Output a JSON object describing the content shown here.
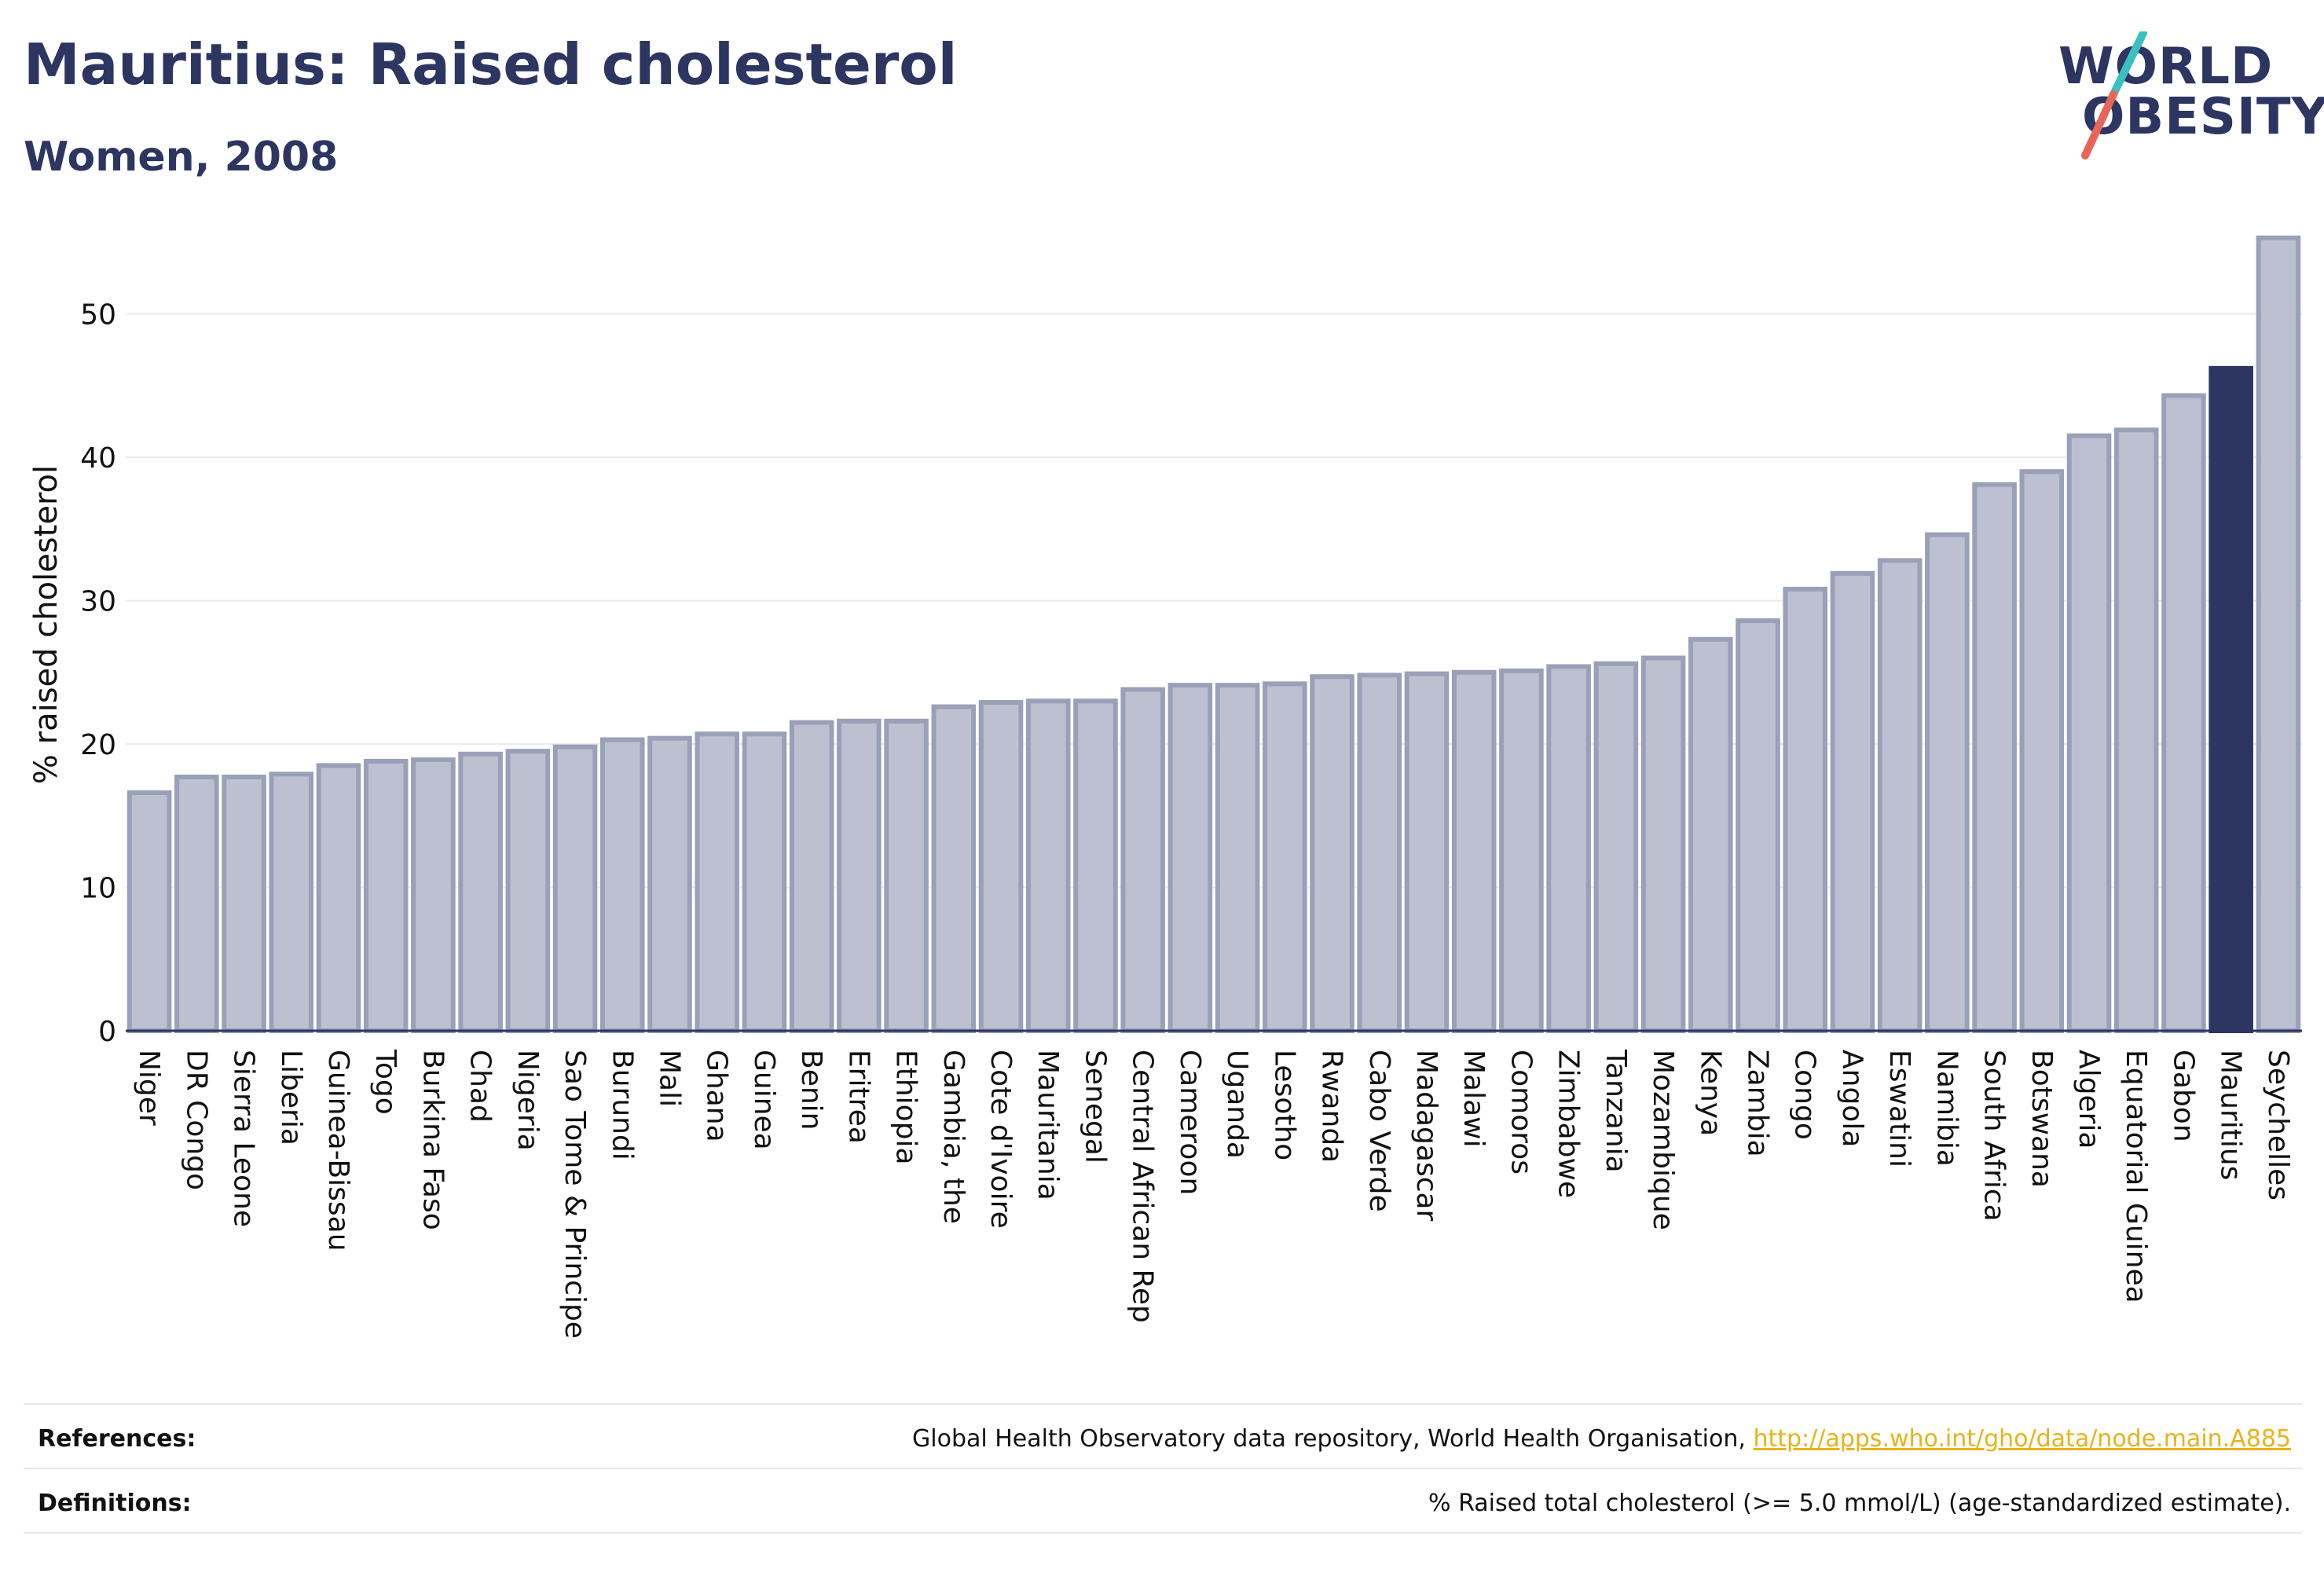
{
  "header": {
    "title": "Mauritius: Raised cholesterol",
    "subtitle": "Women, 2008"
  },
  "logo": {
    "line1": "WORLD",
    "line2": "OBESITY",
    "accent_colors": [
      "#3bbfbf",
      "#e8655a"
    ]
  },
  "colors": {
    "bar_fill": "#bcc0d0",
    "bar_stroke": "#9aa0b8",
    "highlight_fill": "#2d3561",
    "text": "#2d3561",
    "grid": "#e8eaf0",
    "link": "#e8b31a"
  },
  "chart_data": {
    "type": "bar",
    "title": "Mauritius: Raised cholesterol",
    "subtitle": "Women, 2008",
    "xlabel": "",
    "ylabel": "% raised cholesterol",
    "ylim": [
      0,
      56
    ],
    "yticks": [
      0,
      10,
      20,
      30,
      40,
      50
    ],
    "grid": true,
    "highlight": "Mauritius",
    "categories": [
      "Niger",
      "DR Congo",
      "Sierra Leone",
      "Liberia",
      "Guinea-Bissau",
      "Togo",
      "Burkina Faso",
      "Chad",
      "Nigeria",
      "Sao Tome & Principe",
      "Burundi",
      "Mali",
      "Ghana",
      "Guinea",
      "Benin",
      "Eritrea",
      "Ethiopia",
      "Gambia, the",
      "Cote d'Ivoire",
      "Mauritania",
      "Senegal",
      "Central African Rep",
      "Cameroon",
      "Uganda",
      "Lesotho",
      "Rwanda",
      "Cabo Verde",
      "Madagascar",
      "Malawi",
      "Comoros",
      "Zimbabwe",
      "Tanzania",
      "Mozambique",
      "Kenya",
      "Zambia",
      "Congo",
      "Angola",
      "Eswatini",
      "Namibia",
      "South Africa",
      "Botswana",
      "Algeria",
      "Equatorial Guinea",
      "Gabon",
      "Mauritius",
      "Seychelles"
    ],
    "values": [
      16.6,
      17.7,
      17.7,
      17.9,
      18.5,
      18.8,
      18.9,
      19.3,
      19.5,
      19.8,
      20.3,
      20.4,
      20.7,
      20.7,
      21.5,
      21.6,
      21.6,
      22.6,
      22.9,
      23.0,
      23.0,
      23.8,
      24.1,
      24.1,
      24.2,
      24.7,
      24.8,
      24.9,
      25.0,
      25.1,
      25.4,
      25.6,
      26.0,
      27.3,
      28.6,
      30.8,
      31.9,
      32.8,
      34.6,
      38.1,
      39.0,
      41.5,
      41.9,
      44.3,
      46.2,
      55.3
    ]
  },
  "footer": {
    "references_label": "References:",
    "references_text": "Global Health Observatory data repository, World Health Organisation, ",
    "references_link": "http://apps.who.int/gho/data/node.main.A885",
    "definitions_label": "Definitions:",
    "definitions_text": "% Raised total cholesterol (>= 5.0 mmol/L) (age-standardized estimate)."
  }
}
